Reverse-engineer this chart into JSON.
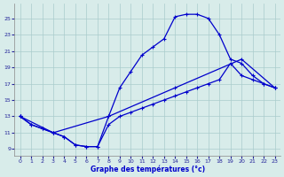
{
  "xlabel": "Graphe des températures (°c)",
  "background_color": "#d8ecea",
  "grid_color": "#aacccc",
  "line_color": "#0000cc",
  "x_ticks": [
    0,
    1,
    2,
    3,
    4,
    5,
    6,
    7,
    8,
    9,
    10,
    11,
    12,
    13,
    14,
    15,
    16,
    17,
    18,
    19,
    20,
    21,
    22,
    23
  ],
  "y_ticks": [
    9,
    11,
    13,
    15,
    17,
    19,
    21,
    23,
    25
  ],
  "ylim": [
    8.2,
    26.8
  ],
  "xlim": [
    -0.5,
    23.5
  ],
  "line1_x": [
    0,
    1,
    2,
    3,
    4,
    5,
    6,
    7,
    8,
    9,
    10,
    11,
    12,
    13,
    14,
    15,
    16,
    17,
    18,
    19,
    20,
    21,
    22,
    23
  ],
  "line1_y": [
    13,
    12,
    11.5,
    11,
    10.5,
    9.5,
    9.3,
    9.3,
    13,
    16.5,
    18.5,
    20.5,
    21.5,
    22.5,
    25.2,
    25.5,
    25.5,
    25,
    23,
    20,
    19.5,
    18,
    17,
    16.5
  ],
  "line2_x": [
    0,
    3,
    8,
    14,
    20,
    23
  ],
  "line2_y": [
    13,
    11,
    13,
    16.5,
    20,
    16.5
  ],
  "line3_x": [
    0,
    1,
    2,
    3,
    4,
    5,
    6,
    7,
    8,
    9,
    10,
    11,
    12,
    13,
    14,
    15,
    16,
    17,
    18,
    19,
    20,
    21,
    22,
    23
  ],
  "line3_y": [
    13,
    12,
    11.5,
    11,
    10.5,
    9.5,
    9.3,
    9.3,
    12.0,
    13.0,
    13.5,
    14.0,
    14.5,
    15.0,
    15.5,
    16.0,
    16.5,
    17.0,
    17.5,
    19.5,
    18.0,
    17.5,
    17.0,
    16.5
  ]
}
